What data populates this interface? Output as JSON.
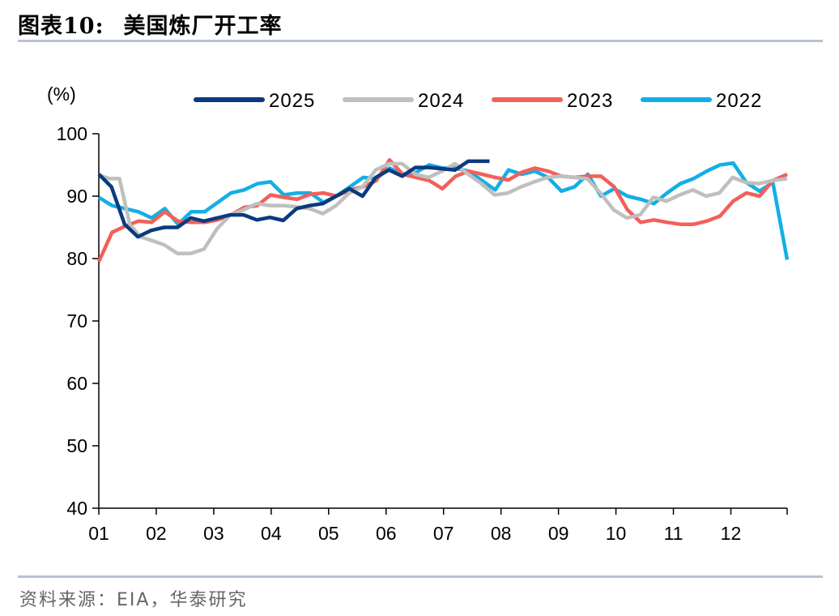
{
  "header": {
    "figure_no": "图表10:",
    "title": "美国炼厂开工率"
  },
  "source": "资料来源：EIA，华泰研究",
  "chart_data": {
    "type": "line",
    "title": "美国炼厂开工率",
    "ylabel": "(%)",
    "xlabel": "",
    "ylim": [
      40,
      100
    ],
    "yticks": [
      40,
      50,
      60,
      70,
      80,
      90,
      100
    ],
    "xlim": [
      1,
      12.98
    ],
    "xticks": [
      "01",
      "02",
      "03",
      "04",
      "05",
      "06",
      "07",
      "08",
      "09",
      "10",
      "11",
      "12"
    ],
    "grid": false,
    "legend_position": "top",
    "series": [
      {
        "name": "2025",
        "color": "#0b3a7e",
        "x": [
          1.0,
          1.22,
          1.45,
          1.68,
          1.91,
          2.14,
          2.37,
          2.6,
          2.83,
          3.06,
          3.29,
          3.52,
          3.75,
          3.98,
          4.21,
          4.44,
          4.67,
          4.9,
          5.13,
          5.36,
          5.59,
          5.82,
          6.05,
          6.28,
          6.51,
          6.74,
          6.97,
          7.2,
          7.43,
          7.66,
          7.8
        ],
        "values": [
          93.5,
          91.5,
          85.5,
          83.5,
          84.5,
          85.0,
          85.0,
          86.5,
          86.0,
          86.5,
          87.0,
          87.0,
          86.2,
          86.6,
          86.1,
          88.0,
          88.5,
          88.8,
          90.0,
          91.2,
          90.0,
          93.0,
          94.2,
          93.2,
          94.6,
          94.6,
          94.4,
          94.2,
          95.6,
          95.6,
          95.6
        ]
      },
      {
        "name": "2024",
        "color": "#bfbfbf",
        "x": [
          1.0,
          1.18,
          1.36,
          1.54,
          1.72,
          1.95,
          2.14,
          2.37,
          2.6,
          2.83,
          3.06,
          3.29,
          3.52,
          3.75,
          3.98,
          4.21,
          4.44,
          4.67,
          4.9,
          5.13,
          5.36,
          5.59,
          5.82,
          6.05,
          6.28,
          6.51,
          6.74,
          6.97,
          7.2,
          7.43,
          7.66,
          7.89,
          8.12,
          8.35,
          8.58,
          8.81,
          9.04,
          9.27,
          9.5,
          9.73,
          9.96,
          10.19,
          10.42,
          10.65,
          10.88,
          11.11,
          11.34,
          11.57,
          11.8,
          12.03,
          12.26,
          12.49,
          12.72,
          12.98
        ],
        "values": [
          93.4,
          92.8,
          92.8,
          85.5,
          83.5,
          82.8,
          82.2,
          80.8,
          80.8,
          81.5,
          84.8,
          87.0,
          87.8,
          88.8,
          88.5,
          88.5,
          88.3,
          88.0,
          87.2,
          88.5,
          90.5,
          91.5,
          94.2,
          95.2,
          95.2,
          93.5,
          93.0,
          94.0,
          95.2,
          93.5,
          92.0,
          90.2,
          90.5,
          91.5,
          92.3,
          93.0,
          93.2,
          93.0,
          92.8,
          90.5,
          87.8,
          86.5,
          87.0,
          89.8,
          89.2,
          90.2,
          91.0,
          90.0,
          90.5,
          93.0,
          92.2,
          92.0,
          92.5,
          92.8
        ]
      },
      {
        "name": "2023",
        "color": "#f2605a",
        "x": [
          1.0,
          1.23,
          1.46,
          1.69,
          1.92,
          2.15,
          2.38,
          2.61,
          2.84,
          3.07,
          3.3,
          3.53,
          3.76,
          3.99,
          4.22,
          4.45,
          4.68,
          4.91,
          5.14,
          5.37,
          5.6,
          5.83,
          6.06,
          6.29,
          6.52,
          6.75,
          6.98,
          7.21,
          7.44,
          7.67,
          7.9,
          8.13,
          8.36,
          8.59,
          8.82,
          9.05,
          9.28,
          9.51,
          9.74,
          9.97,
          10.2,
          10.43,
          10.66,
          10.89,
          11.12,
          11.35,
          11.58,
          11.81,
          12.04,
          12.27,
          12.5,
          12.73,
          12.98
        ],
        "values": [
          79.5,
          84.2,
          85.2,
          86.0,
          85.8,
          87.5,
          86.0,
          85.8,
          85.8,
          86.2,
          87.0,
          88.2,
          88.5,
          90.2,
          89.8,
          89.5,
          90.3,
          90.5,
          90.0,
          91.0,
          91.5,
          92.5,
          95.8,
          93.5,
          93.0,
          92.5,
          91.2,
          93.2,
          94.0,
          93.5,
          93.0,
          92.6,
          93.8,
          94.5,
          94.0,
          93.2,
          93.0,
          93.2,
          93.2,
          91.5,
          87.8,
          85.8,
          86.2,
          85.8,
          85.5,
          85.5,
          86.0,
          86.8,
          89.2,
          90.5,
          90.0,
          92.5,
          93.5
        ]
      },
      {
        "name": "2022",
        "color": "#14aee6",
        "x": [
          1.0,
          1.23,
          1.46,
          1.69,
          1.92,
          2.15,
          2.38,
          2.61,
          2.84,
          3.07,
          3.3,
          3.53,
          3.76,
          3.99,
          4.22,
          4.45,
          4.68,
          4.91,
          5.14,
          5.37,
          5.6,
          5.83,
          6.06,
          6.29,
          6.52,
          6.75,
          6.98,
          7.21,
          7.44,
          7.67,
          7.9,
          8.13,
          8.36,
          8.59,
          8.82,
          9.05,
          9.28,
          9.51,
          9.74,
          9.97,
          10.2,
          10.43,
          10.66,
          10.89,
          11.12,
          11.35,
          11.58,
          11.81,
          12.04,
          12.27,
          12.5,
          12.73,
          12.98
        ],
        "values": [
          89.8,
          88.5,
          88.0,
          87.5,
          86.5,
          88.0,
          85.5,
          87.5,
          87.5,
          89.0,
          90.5,
          91.0,
          92.0,
          92.3,
          90.2,
          90.5,
          90.5,
          89.0,
          90.0,
          91.5,
          93.0,
          92.8,
          94.5,
          93.5,
          93.8,
          95.0,
          94.5,
          94.5,
          94.0,
          92.5,
          91.0,
          94.2,
          93.5,
          94.0,
          93.0,
          90.8,
          91.5,
          93.5,
          90.0,
          91.2,
          90.0,
          89.5,
          88.8,
          90.5,
          92.0,
          92.8,
          94.0,
          95.0,
          95.3,
          92.2,
          90.8,
          92.2,
          79.8
        ]
      }
    ]
  }
}
